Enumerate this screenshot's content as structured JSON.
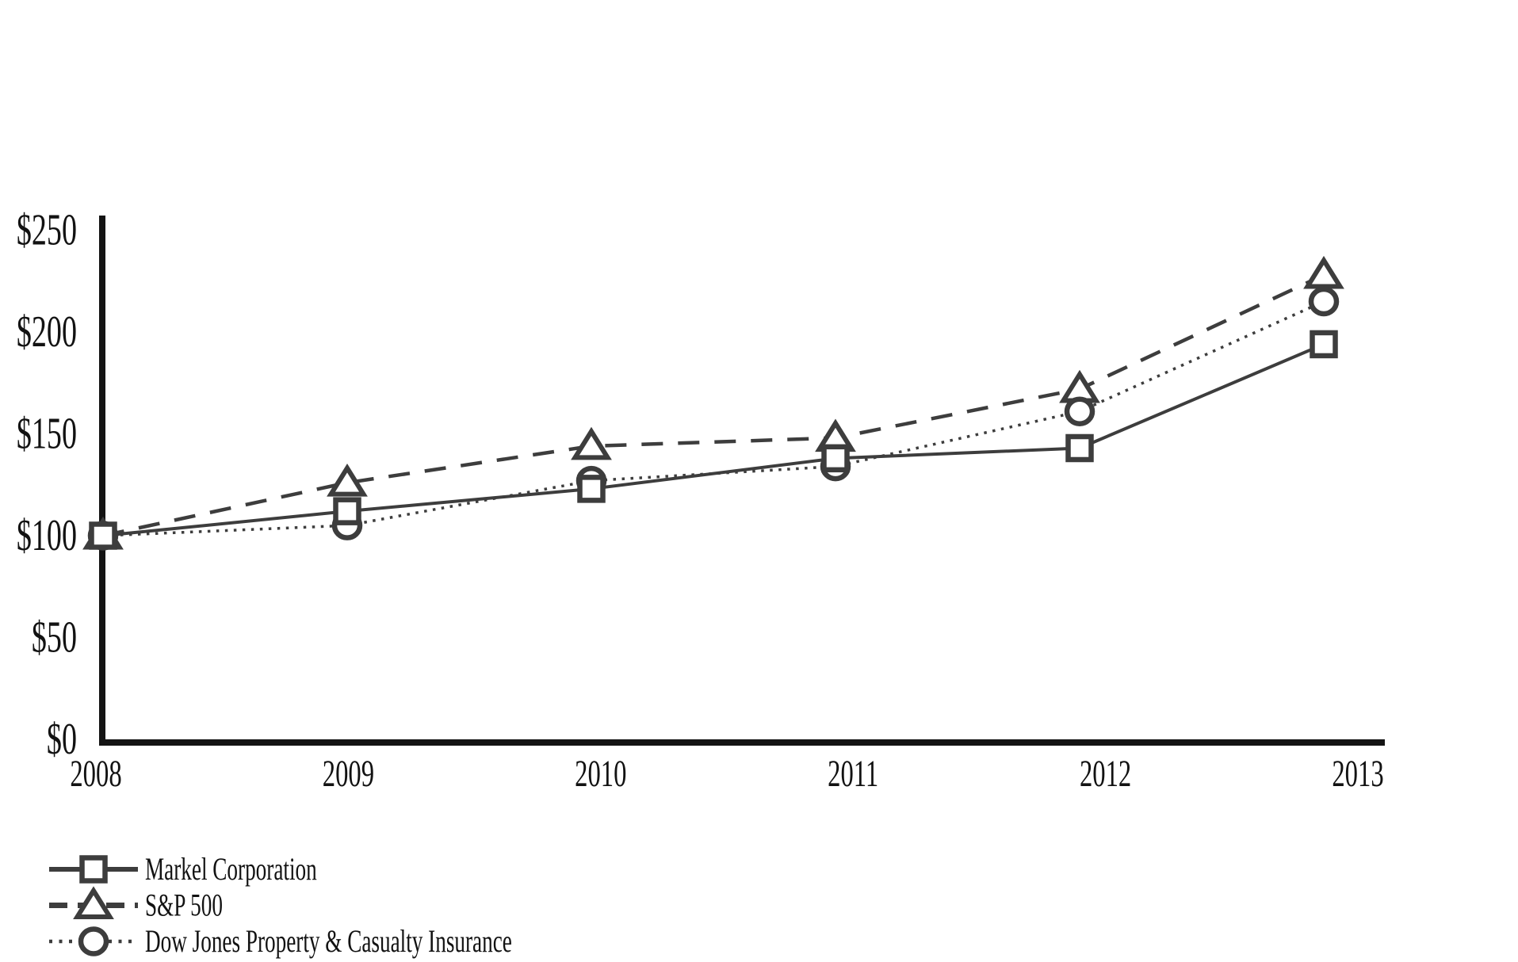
{
  "page": {
    "background": "#ffffff"
  },
  "chart_data": {
    "type": "line",
    "title": "",
    "x_categories": [
      "2008",
      "2009",
      "2010",
      "2011",
      "2012",
      "2013"
    ],
    "y_axis": {
      "ticks": [
        "$0",
        "$50",
        "$100",
        "$150",
        "$200",
        "$250"
      ],
      "min": 0,
      "max": 250,
      "tick_step": 50,
      "prefix": "$"
    },
    "grid": false,
    "legend_position": "bottom-left",
    "series": [
      {
        "name": "Markel Corporation",
        "marker": "square",
        "line_style": "solid",
        "values": [
          100,
          112,
          123,
          138,
          143,
          194
        ]
      },
      {
        "name": "S&P 500",
        "marker": "triangle",
        "line_style": "dashed",
        "values": [
          100,
          126,
          144,
          148,
          172,
          228
        ]
      },
      {
        "name": "Dow Jones Property & Casualty Insurance",
        "marker": "circle",
        "line_style": "dotted",
        "values": [
          100,
          105,
          127,
          134,
          161,
          215
        ]
      }
    ],
    "colors": {
      "series_stroke": "#3d3d3d",
      "axis": "#141414",
      "text": "#121212",
      "background": "#ffffff"
    }
  }
}
